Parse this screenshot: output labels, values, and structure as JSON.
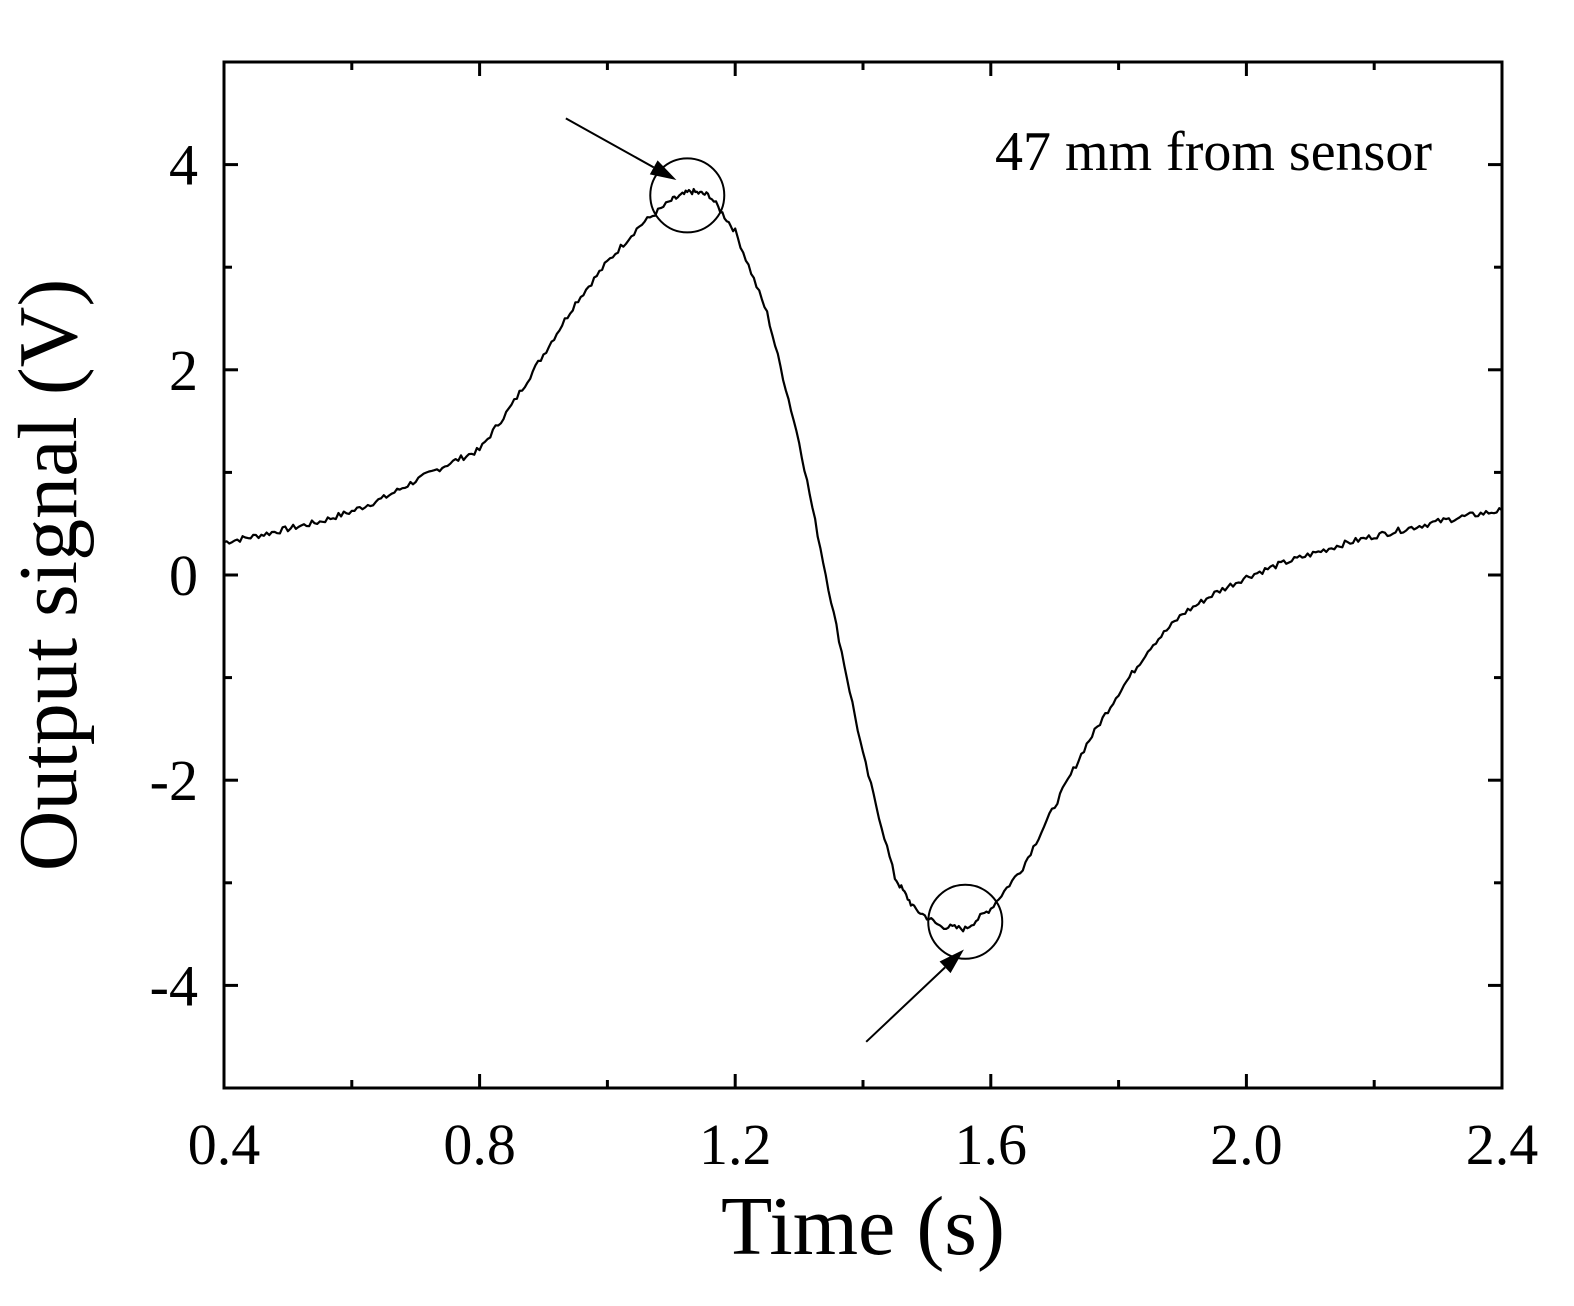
{
  "chart_data": {
    "type": "line",
    "title": "",
    "xlabel": "Time (s)",
    "ylabel": "Output signal (V)",
    "xlim": [
      0.4,
      2.4
    ],
    "ylim": [
      -5,
      5
    ],
    "x_ticks": [
      0.4,
      0.8,
      1.2,
      1.6,
      2.0,
      2.4
    ],
    "x_tick_labels": [
      "0.4",
      "0.8",
      "1.2",
      "1.6",
      "2.0",
      "2.4"
    ],
    "x_minor_ticks": [
      0.6,
      1.0,
      1.4,
      1.8,
      2.2
    ],
    "y_ticks": [
      -4,
      -2,
      0,
      2,
      4
    ],
    "y_tick_labels": [
      "-4",
      "-2",
      "0",
      "2",
      "4"
    ],
    "y_minor_ticks": [
      -3,
      -1,
      1,
      3
    ],
    "grid": false,
    "legend": "none",
    "series": [
      {
        "name": "Output signal",
        "color": "#000000",
        "x": [
          0.4,
          0.45,
          0.5,
          0.55,
          0.6,
          0.65,
          0.7,
          0.75,
          0.8,
          0.85,
          0.9,
          0.95,
          1.0,
          1.05,
          1.1,
          1.13,
          1.16,
          1.2,
          1.25,
          1.3,
          1.35,
          1.4,
          1.45,
          1.48,
          1.52,
          1.56,
          1.6,
          1.65,
          1.7,
          1.75,
          1.8,
          1.85,
          1.9,
          1.95,
          2.0,
          2.05,
          2.1,
          2.15,
          2.2,
          2.25,
          2.3,
          2.35,
          2.4
        ],
        "y": [
          0.32,
          0.38,
          0.45,
          0.52,
          0.62,
          0.75,
          0.92,
          1.08,
          1.22,
          1.65,
          2.15,
          2.65,
          3.05,
          3.4,
          3.65,
          3.74,
          3.7,
          3.35,
          2.55,
          1.3,
          -0.25,
          -1.75,
          -2.95,
          -3.25,
          -3.42,
          -3.45,
          -3.25,
          -2.85,
          -2.25,
          -1.65,
          -1.15,
          -0.7,
          -0.38,
          -0.18,
          -0.02,
          0.1,
          0.2,
          0.3,
          0.38,
          0.45,
          0.52,
          0.58,
          0.63
        ]
      }
    ],
    "annotations": [
      {
        "text": "47 mm from sensor",
        "position": "top-right"
      },
      {
        "type": "circle-marker",
        "label": "peak",
        "x": 1.125,
        "y": 3.7
      },
      {
        "type": "circle-marker",
        "label": "trough",
        "x": 1.56,
        "y": -3.38
      },
      {
        "type": "arrow",
        "from": [
          0.935,
          4.45
        ],
        "to": [
          1.108,
          3.85
        ]
      },
      {
        "type": "arrow",
        "from": [
          1.405,
          -4.55
        ],
        "to": [
          1.558,
          -3.65
        ]
      }
    ]
  }
}
